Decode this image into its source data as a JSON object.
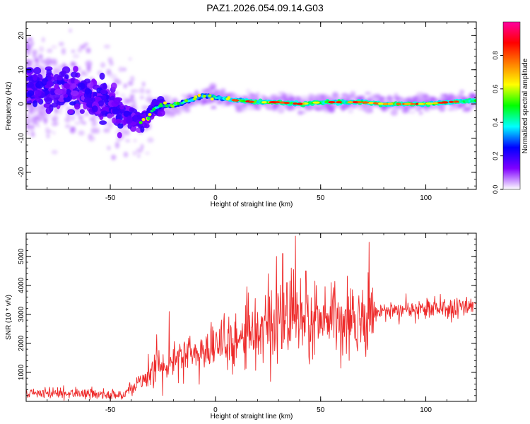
{
  "title": "PAZ1.2026.054.09.14.G03",
  "chart_data": [
    {
      "type": "heatmap",
      "name": "spectrogram",
      "xlabel": "Height of straight line (km)",
      "ylabel": "Frequency (Hz)",
      "xlim": [
        -90,
        124
      ],
      "ylim": [
        -25,
        24
      ],
      "xticks": [
        -50,
        0,
        50,
        100
      ],
      "yticks": [
        20,
        10,
        0,
        -10,
        -20
      ],
      "ridge_x": [
        -90,
        -80,
        -70,
        -60,
        -50,
        -45,
        -40,
        -35,
        -32,
        -30,
        -28,
        -25,
        -20,
        -15,
        -10,
        -5,
        0,
        5,
        10,
        20,
        30,
        40,
        50,
        60,
        70,
        80,
        90,
        100,
        110,
        124
      ],
      "ridge_freq": [
        5,
        5,
        4,
        2,
        0,
        -2,
        -4,
        -5,
        -4,
        -2,
        -1,
        -0.5,
        -0.5,
        0.5,
        1.5,
        2.5,
        2,
        1.5,
        1,
        0.5,
        0.5,
        0,
        0.5,
        0.5,
        0.5,
        0,
        0,
        0,
        0.5,
        1
      ],
      "colorbar": {
        "label": "Normalized spectral amplitude",
        "min": 0.0,
        "max": 1.0,
        "ticks": [
          0.0,
          0.2,
          0.4,
          0.6,
          0.8
        ],
        "tick_labels": [
          "0.0",
          "0.2",
          "0.4",
          "0.6",
          "0.8"
        ],
        "colors": [
          "#ffffff",
          "#8000ff",
          "#0000ff",
          "#00ffff",
          "#00ff00",
          "#ffff00",
          "#ff8000",
          "#ff0000",
          "#ff00a0"
        ]
      }
    },
    {
      "type": "line",
      "name": "snr",
      "xlabel": "Height of straight line (km)",
      "ylabel": "SNR (10 * v/v)",
      "xlim": [
        -90,
        124
      ],
      "ylim": [
        0,
        5800
      ],
      "xticks": [
        -50,
        0,
        50,
        100
      ],
      "yticks": [
        1000,
        2000,
        3000,
        4000,
        5000
      ],
      "color": "#ee2a2a",
      "x": [
        -90,
        -80,
        -70,
        -60,
        -50,
        -45,
        -42,
        -38,
        -35,
        -32,
        -30,
        -28,
        -25,
        -22,
        -20,
        -15,
        -10,
        -5,
        0,
        5,
        10,
        15,
        20,
        25,
        30,
        35,
        38,
        40,
        45,
        50,
        55,
        60,
        65,
        70,
        80,
        90,
        100,
        110,
        124
      ],
      "y": [
        250,
        300,
        280,
        260,
        220,
        200,
        350,
        500,
        700,
        900,
        1100,
        1300,
        1300,
        1200,
        1400,
        1500,
        1700,
        1800,
        1900,
        2000,
        2100,
        2300,
        2400,
        2500,
        2600,
        2800,
        3400,
        3000,
        2800,
        2700,
        2800,
        2900,
        2900,
        3000,
        3100,
        3150,
        3200,
        3250,
        3250
      ],
      "peaks": [
        {
          "x": 38,
          "y": 5700
        },
        {
          "x": 29,
          "y": 5000
        },
        {
          "x": 32,
          "y": 5100
        },
        {
          "x": 36,
          "y": 4600
        },
        {
          "x": 25,
          "y": 4400
        },
        {
          "x": -22,
          "y": 3100
        },
        {
          "x": -28,
          "y": 2300
        },
        {
          "x": 43,
          "y": 4500
        },
        {
          "x": 34,
          "y": 4100
        },
        {
          "x": 48,
          "y": 4000
        },
        {
          "x": 55,
          "y": 4100
        }
      ]
    }
  ]
}
